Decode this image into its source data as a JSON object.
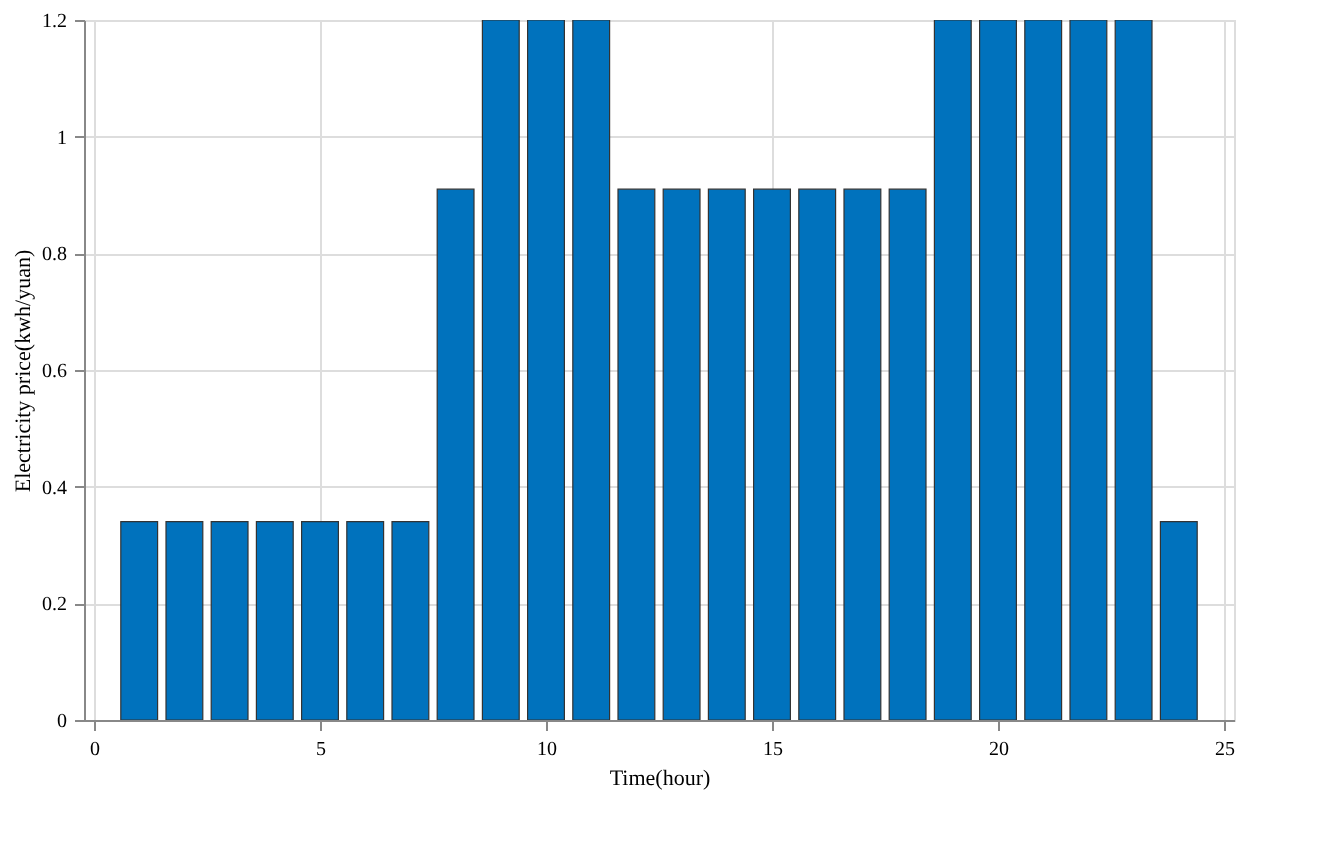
{
  "chart_data": {
    "type": "bar",
    "xlabel": "Time(hour)",
    "ylabel": "Electricity price(kwh/yuan)",
    "x": [
      1,
      2,
      3,
      4,
      5,
      6,
      7,
      8,
      9,
      10,
      11,
      12,
      13,
      14,
      15,
      16,
      17,
      18,
      19,
      20,
      21,
      22,
      23,
      24
    ],
    "values": [
      0.34,
      0.34,
      0.34,
      0.34,
      0.34,
      0.34,
      0.34,
      0.91,
      1.2,
      1.2,
      1.2,
      0.91,
      0.91,
      0.91,
      0.91,
      0.91,
      0.91,
      0.91,
      1.2,
      1.2,
      1.2,
      1.2,
      1.2,
      0.34
    ],
    "color": "#0072bd",
    "xlim": [
      0,
      25
    ],
    "xticks": [
      0,
      5,
      10,
      15,
      20,
      25
    ],
    "ylim": [
      0,
      1.2
    ],
    "yticks": [
      0,
      0.2,
      0.4,
      0.6,
      0.8,
      1,
      1.2
    ],
    "grid": true
  }
}
